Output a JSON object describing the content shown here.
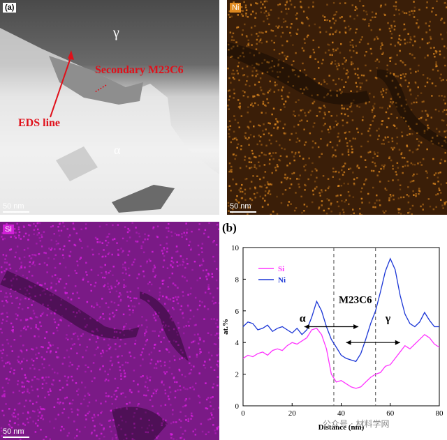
{
  "figure": {
    "panel_a_label": "(a)",
    "panel_b_label": "(b)",
    "ni_tag": "Ni",
    "si_tag": "Si",
    "scale_bar": "50 nm",
    "tem_gamma": "γ",
    "tem_alpha": "α",
    "tem_secondary": "Secondary M23C6",
    "tem_eds_line": "EDS line",
    "watermark": "公众号 · 材料学网",
    "colors": {
      "ni_map": "#e08a20",
      "si_map": "#e020e6",
      "si_line": "#ff33ff",
      "ni_line": "#1a35d6",
      "red_annotation": "#e0101a"
    }
  },
  "chart_data": {
    "type": "line",
    "xlabel": "Distance (nm)",
    "ylabel": "at.%",
    "xlim": [
      0,
      80
    ],
    "ylim": [
      0,
      10
    ],
    "xticks": [
      0,
      20,
      40,
      60,
      80
    ],
    "yticks": [
      0,
      2,
      4,
      6,
      8,
      10
    ],
    "grid": false,
    "legend_position": "top-left",
    "region_labels": {
      "alpha": "α",
      "gamma": "γ",
      "carbide": "M23C6"
    },
    "dashed_boundaries_x": [
      37,
      54
    ],
    "series": [
      {
        "name": "Si",
        "color": "#ff33ff",
        "x": [
          0,
          2,
          4,
          6,
          8,
          10,
          12,
          14,
          16,
          18,
          20,
          22,
          24,
          26,
          28,
          30,
          32,
          34,
          36,
          38,
          40,
          42,
          44,
          46,
          48,
          50,
          52,
          54,
          56,
          58,
          60,
          62,
          64,
          66,
          68,
          70,
          72,
          74,
          76,
          78,
          80
        ],
        "values": [
          3.0,
          3.2,
          3.1,
          3.3,
          3.4,
          3.2,
          3.5,
          3.6,
          3.5,
          3.8,
          4.0,
          3.9,
          4.1,
          4.3,
          4.8,
          4.9,
          4.5,
          3.6,
          2.0,
          1.5,
          1.6,
          1.4,
          1.2,
          1.1,
          1.2,
          1.5,
          1.8,
          2.0,
          2.1,
          2.5,
          2.6,
          3.0,
          3.4,
          3.8,
          3.6,
          3.9,
          4.2,
          4.5,
          4.3,
          3.9,
          3.7
        ]
      },
      {
        "name": "Ni",
        "color": "#1a35d6",
        "x": [
          0,
          2,
          4,
          6,
          8,
          10,
          12,
          14,
          16,
          18,
          20,
          22,
          24,
          26,
          28,
          30,
          32,
          34,
          36,
          38,
          40,
          42,
          44,
          46,
          48,
          50,
          52,
          54,
          56,
          58,
          60,
          62,
          64,
          66,
          68,
          70,
          72,
          74,
          76,
          78,
          80
        ],
        "values": [
          5.0,
          5.3,
          5.2,
          4.8,
          4.9,
          5.1,
          4.7,
          4.9,
          5.0,
          4.8,
          4.6,
          4.9,
          4.5,
          4.8,
          5.6,
          6.6,
          6.0,
          5.0,
          4.2,
          3.7,
          3.2,
          3.0,
          2.9,
          2.8,
          3.3,
          4.2,
          5.2,
          6.0,
          7.2,
          8.5,
          9.3,
          8.6,
          7.0,
          5.8,
          5.2,
          5.0,
          5.3,
          5.9,
          5.4,
          5.0,
          5.0
        ]
      }
    ]
  }
}
